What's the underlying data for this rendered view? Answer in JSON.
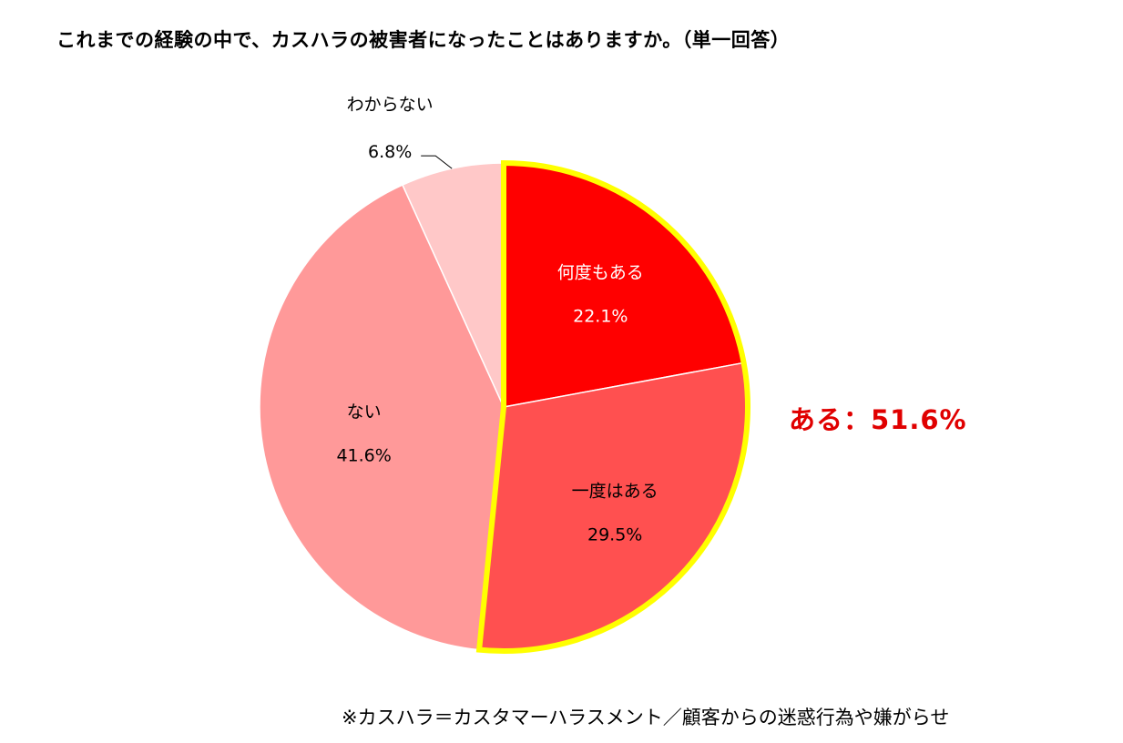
{
  "title": "これまでの経験の中で、カスハラの被害者になったことはありますか。（単一回答）",
  "summary": "ある：51.6%",
  "footnote": "※カスハラ＝カスタマーハラスメント／顧客からの迷惑行為や嫌がらせ",
  "chart_data": {
    "type": "pie",
    "title": "これまでの経験の中で、カスハラの被害者になったことはありますか。（単一回答）",
    "slices": [
      {
        "label": "何度もある",
        "value": 22.1,
        "value_label": "22.1%",
        "color": "#ff0000",
        "text_color": "#ffffff"
      },
      {
        "label": "一度はある",
        "value": 29.5,
        "value_label": "29.5%",
        "color": "#ff5050",
        "text_color": "#000000"
      },
      {
        "label": "ない",
        "value": 41.6,
        "value_label": "41.6%",
        "color": "#ff9999",
        "text_color": "#000000"
      },
      {
        "label": "わからない",
        "value": 6.8,
        "value_label": "6.8%",
        "color": "#ffc8c8",
        "text_color": "#000000"
      }
    ],
    "highlight": {
      "slices": [
        "何度もある",
        "一度はある"
      ],
      "label": "ある：51.6%",
      "outline_color": "#ffff00",
      "text_color": "#e00000"
    }
  }
}
